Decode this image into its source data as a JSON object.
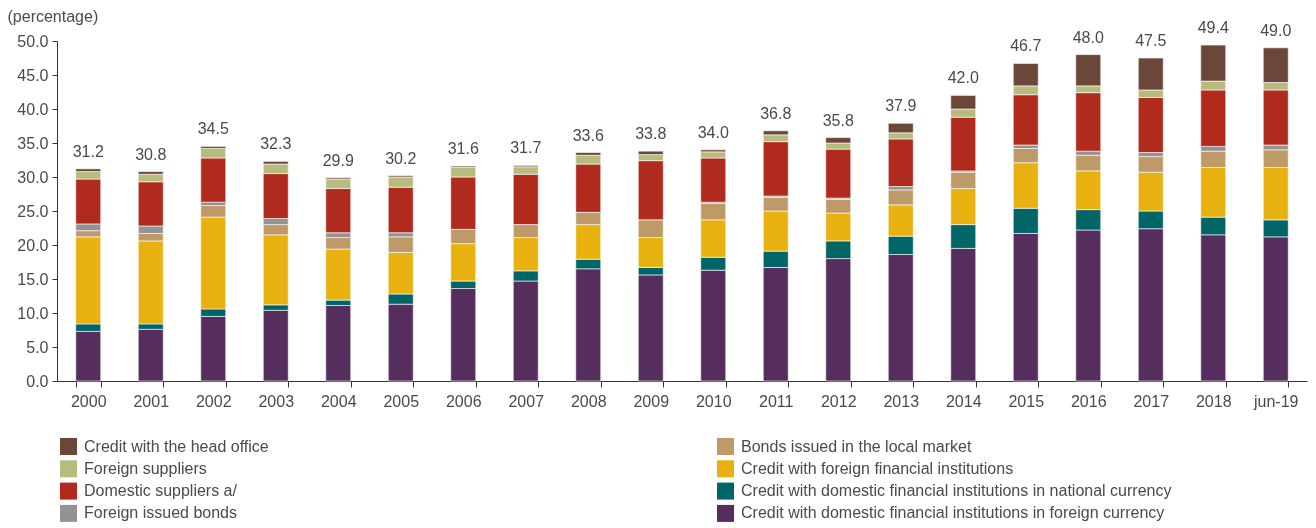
{
  "chart_data": {
    "type": "bar",
    "stacked": true,
    "ylabel": "(percentage)",
    "categories": [
      "2000",
      "2001",
      "2002",
      "2003",
      "2004",
      "2005",
      "2006",
      "2007",
      "2008",
      "2009",
      "2010",
      "2011",
      "2012",
      "2013",
      "2014",
      "2015",
      "2016",
      "2017",
      "2018",
      "jun-19"
    ],
    "series": [
      {
        "name": "Credit with domestic financial institutions in foreign currency",
        "color": "#552e5e",
        "values": [
          7.3,
          7.6,
          9.5,
          10.4,
          11.1,
          11.3,
          13.6,
          14.7,
          16.5,
          15.6,
          16.3,
          16.7,
          18.0,
          18.6,
          19.5,
          21.7,
          22.2,
          22.4,
          21.5,
          21.2
        ]
      },
      {
        "name": "Credit with domestic financial institutions in national currency",
        "color": "#006567",
        "values": [
          1.1,
          0.8,
          1.1,
          0.8,
          0.8,
          1.5,
          1.1,
          1.5,
          1.4,
          1.1,
          1.9,
          2.4,
          2.6,
          2.7,
          3.5,
          3.7,
          3.0,
          2.6,
          2.6,
          2.5
        ]
      },
      {
        "name": "Credit with foreign financial institutions",
        "color": "#e9b110",
        "values": [
          12.8,
          12.2,
          13.5,
          10.3,
          7.5,
          6.1,
          5.5,
          4.9,
          5.1,
          4.4,
          5.5,
          5.9,
          4.1,
          4.6,
          5.3,
          6.7,
          5.7,
          5.7,
          7.3,
          7.7
        ]
      },
      {
        "name": "Bonds issued in the local market",
        "color": "#bd9a68",
        "values": [
          0.9,
          1.1,
          1.7,
          1.5,
          1.7,
          2.3,
          2.1,
          1.9,
          1.8,
          2.6,
          2.4,
          2.0,
          2.0,
          2.2,
          2.4,
          2.1,
          2.3,
          2.3,
          2.4,
          2.6
        ]
      },
      {
        "name": "Foreign issued bonds",
        "color": "#939393",
        "values": [
          1.0,
          1.1,
          0.5,
          0.9,
          0.7,
          0.6,
          null,
          null,
          null,
          null,
          0.2,
          0.2,
          0.2,
          0.5,
          0.2,
          0.5,
          0.6,
          0.6,
          0.7,
          0.7
        ]
      },
      {
        "name": "Domestic suppliers a/",
        "color": "#b02a1e",
        "values": [
          6.6,
          6.5,
          6.5,
          6.6,
          6.5,
          6.7,
          7.7,
          7.4,
          7.1,
          8.7,
          6.5,
          8.0,
          7.2,
          7.0,
          7.9,
          7.4,
          8.6,
          8.1,
          8.3,
          8.1
        ]
      },
      {
        "name": "Foreign suppliers",
        "color": "#b8bb7e",
        "values": [
          1.1,
          1.1,
          1.4,
          1.4,
          1.4,
          1.5,
          1.4,
          1.1,
          1.3,
          0.9,
          0.9,
          1.0,
          0.9,
          0.9,
          1.2,
          1.3,
          1.0,
          1.1,
          1.3,
          1.1
        ]
      },
      {
        "name": "Credit with the head office",
        "color": "#6b4739",
        "values": [
          0.4,
          0.4,
          0.3,
          0.4,
          0.2,
          0.2,
          0.2,
          0.2,
          0.4,
          0.5,
          0.3,
          0.6,
          0.8,
          1.4,
          2.0,
          3.3,
          4.6,
          4.7,
          5.3,
          5.1
        ]
      }
    ],
    "totals": [
      "31.2",
      "30.8",
      "34.5",
      "32.3",
      "29.9",
      "30.2",
      "31.6",
      "31.7",
      "33.6",
      "33.8",
      "34.0",
      "36.8",
      "35.8",
      "37.9",
      "42.0",
      "46.7",
      "48.0",
      "47.5",
      "49.4",
      "49.0"
    ],
    "ylim": [
      0,
      50
    ],
    "yticks": [
      {
        "value": 0,
        "label": "0.0"
      },
      {
        "value": 5,
        "label": "5.0"
      },
      {
        "value": 10,
        "label": "10.0"
      },
      {
        "value": 15,
        "label": "15.0"
      },
      {
        "value": 20,
        "label": "20.0"
      },
      {
        "value": 25,
        "label": "25.0"
      },
      {
        "value": 30,
        "label": "30.0"
      },
      {
        "value": 35,
        "label": "35.0"
      },
      {
        "value": 40,
        "label": "40.0"
      },
      {
        "value": 45,
        "label": "45.0"
      },
      {
        "value": 50,
        "label": "50.0"
      }
    ],
    "legend": "bottom"
  }
}
